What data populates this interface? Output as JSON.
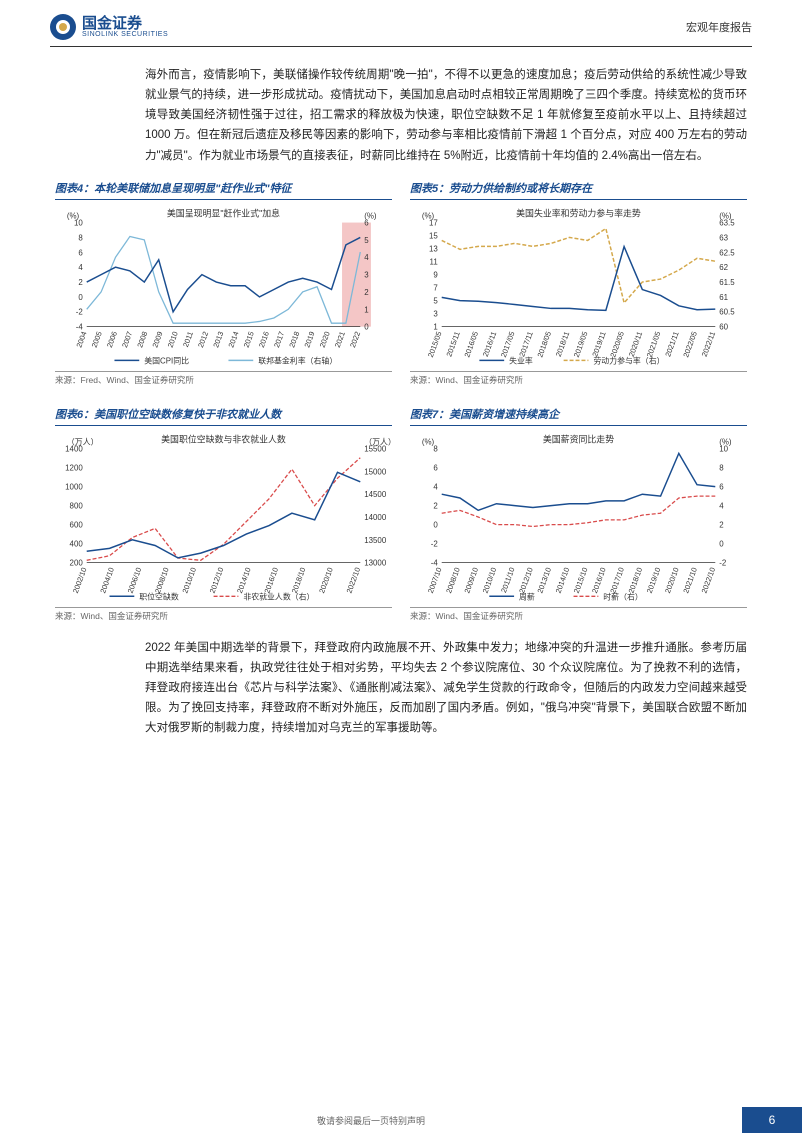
{
  "header": {
    "logo_cn": "国金证券",
    "logo_en": "SINOLINK SECURITIES",
    "doc_type": "宏观年度报告"
  },
  "para1": "海外而言，疫情影响下，美联储操作较传统周期\"晚一拍\"，不得不以更急的速度加息；疫后劳动供给的系统性减少导致就业景气的持续，进一步形成扰动。疫情扰动下，美国加息启动时点相较正常周期晚了三四个季度。持续宽松的货币环境导致美国经济韧性强于过往，招工需求的释放极为快速，职位空缺数不足 1 年就修复至疫前水平以上、且持续超过 1000 万。但在新冠后遗症及移民等因素的影响下，劳动参与率相比疫情前下滑超 1 个百分点，对应 400 万左右的劳动力\"减员\"。作为就业市场景气的直接表征，时薪同比维持在 5%附近，比疫情前十年均值的 2.4%高出一倍左右。",
  "chart4": {
    "title": "图表4：本轮美联储加息呈现明显\"赶作业式\"特征",
    "subtitle": "美国呈现明显\"赶作业式\"加息",
    "source": "来源：Fred、Wind、国金证券研究所",
    "type": "line",
    "x_labels": [
      "2004",
      "2005",
      "2006",
      "2007",
      "2008",
      "2009",
      "2010",
      "2011",
      "2012",
      "2013",
      "2014",
      "2015",
      "2016",
      "2017",
      "2018",
      "2019",
      "2020",
      "2021",
      "2022"
    ],
    "left_ylim": [
      -4,
      10
    ],
    "left_yticks": [
      -4,
      -2,
      0,
      2,
      4,
      6,
      8,
      10
    ],
    "left_unit": "(%)",
    "right_ylim": [
      0,
      6
    ],
    "right_yticks": [
      0,
      1,
      2,
      3,
      4,
      5,
      6
    ],
    "right_unit": "(%)",
    "cpi_color": "#1a4d8f",
    "rate_color": "#7db8d8",
    "band_color": "#f4c6c6",
    "cpi": [
      2,
      3,
      4,
      3.5,
      2,
      5,
      -2,
      1,
      3,
      2,
      1.5,
      1.5,
      0,
      1,
      2,
      2.5,
      2,
      1,
      7,
      8
    ],
    "rate": [
      1,
      2,
      4,
      5.2,
      5,
      2,
      0.2,
      0.2,
      0.2,
      0.2,
      0.2,
      0.2,
      0.3,
      0.5,
      1,
      2,
      2.3,
      0.2,
      0.2,
      4.3
    ],
    "legend": {
      "l1": "美国CPI同比",
      "l2": "联邦基金利率（右轴）"
    }
  },
  "chart5": {
    "title": "图表5：劳动力供给制约或将长期存在",
    "subtitle": "美国失业率和劳动力参与率走势",
    "source": "来源：Wind、国金证券研究所",
    "type": "line",
    "x_labels": [
      "2015/05",
      "2015/11",
      "2016/05",
      "2016/11",
      "2017/05",
      "2017/11",
      "2018/05",
      "2018/11",
      "2019/05",
      "2019/11",
      "2020/05",
      "2020/11",
      "2021/05",
      "2021/11",
      "2022/05",
      "2022/11"
    ],
    "left_ylim": [
      1,
      17
    ],
    "left_yticks": [
      1,
      3,
      5,
      7,
      9,
      11,
      13,
      15,
      17
    ],
    "left_unit": "(%)",
    "right_ylim": [
      60.0,
      63.5
    ],
    "right_yticks": [
      60.0,
      60.5,
      61.0,
      61.5,
      62.0,
      62.5,
      63.0,
      63.5
    ],
    "right_unit": "(%)",
    "unemp_color": "#1a4d8f",
    "lfpr_color": "#d4a84b",
    "unemp": [
      5.5,
      5.0,
      4.9,
      4.7,
      4.4,
      4.1,
      3.8,
      3.8,
      3.6,
      3.5,
      13.3,
      6.7,
      5.8,
      4.2,
      3.6,
      3.7
    ],
    "lfpr": [
      62.9,
      62.6,
      62.7,
      62.7,
      62.8,
      62.7,
      62.8,
      63.0,
      62.9,
      63.3,
      60.8,
      61.5,
      61.6,
      61.9,
      62.3,
      62.2
    ],
    "legend": {
      "l1": "失业率",
      "l2": "劳动力参与率（右）"
    }
  },
  "chart6": {
    "title": "图表6：美国职位空缺数修复快于非农就业人数",
    "subtitle": "美国职位空缺数与非农就业人数",
    "source": "来源：Wind、国金证券研究所",
    "type": "line",
    "x_labels": [
      "2002/10",
      "2004/10",
      "2006/10",
      "2008/10",
      "2010/10",
      "2012/10",
      "2014/10",
      "2016/10",
      "2018/10",
      "2020/10",
      "2022/10"
    ],
    "left_ylim": [
      200,
      1400
    ],
    "left_yticks": [
      200,
      400,
      600,
      800,
      1000,
      1200,
      1400
    ],
    "left_unit": "（万人）",
    "right_ylim": [
      13000,
      15500
    ],
    "right_yticks": [
      13000,
      13500,
      14000,
      14500,
      15000,
      15500
    ],
    "right_unit": "（万人）",
    "jolts_color": "#1a4d8f",
    "nfp_color": "#d94b4b",
    "jolts": [
      320,
      350,
      440,
      380,
      250,
      300,
      380,
      500,
      590,
      720,
      650,
      1150,
      1050
    ],
    "nfp": [
      13050,
      13150,
      13550,
      13750,
      13100,
      13050,
      13400,
      13900,
      14400,
      15050,
      14250,
      14850,
      15300
    ],
    "legend": {
      "l1": "职位空缺数",
      "l2": "非农就业人数（右）"
    }
  },
  "chart7": {
    "title": "图表7：美国薪资增速持续高企",
    "subtitle": "美国薪资同比走势",
    "source": "来源：Wind、国金证券研究所",
    "type": "line",
    "x_labels": [
      "2007/10",
      "2008/10",
      "2009/10",
      "2010/10",
      "2011/10",
      "2012/10",
      "2013/10",
      "2014/10",
      "2015/10",
      "2016/10",
      "2017/10",
      "2018/10",
      "2019/10",
      "2020/10",
      "2021/10",
      "2022/10"
    ],
    "left_ylim": [
      -4,
      8
    ],
    "left_yticks": [
      -4,
      -2,
      0,
      2,
      4,
      6,
      8
    ],
    "left_unit": "(%)",
    "right_ylim": [
      -2,
      10
    ],
    "right_yticks": [
      -2,
      0,
      2,
      4,
      6,
      8,
      10
    ],
    "right_unit": "(%)",
    "weekly_color": "#1a4d8f",
    "hourly_color": "#d94b4b",
    "weekly": [
      3.2,
      2.8,
      1.5,
      2.2,
      2.0,
      1.8,
      2.0,
      2.2,
      2.2,
      2.5,
      2.5,
      3.2,
      3.0,
      7.5,
      4.2,
      4.0
    ],
    "hourly": [
      3.2,
      3.5,
      2.8,
      2.0,
      2.0,
      1.8,
      2.0,
      2.0,
      2.2,
      2.5,
      2.5,
      3.0,
      3.2,
      4.8,
      5.0,
      5.0
    ],
    "legend": {
      "l1": "周薪",
      "l2": "时薪（右）"
    }
  },
  "para2": "2022 年美国中期选举的背景下，拜登政府内政施展不开、外政集中发力；地缘冲突的升温进一步推升通胀。参考历届中期选举结果来看，执政党往往处于相对劣势，平均失去 2 个参议院席位、30 个众议院席位。为了挽救不利的选情，拜登政府接连出台《芯片与科学法案》、《通胀削减法案》、减免学生贷款的行政命令，但随后的内政发力空间越来越受限。为了挽回支持率，拜登政府不断对外施压，反而加剧了国内矛盾。例如，\"俄乌冲突\"背景下，美国联合欧盟不断加大对俄罗斯的制裁力度，持续增加对乌克兰的军事援助等。",
  "footer": {
    "text": "敬请参阅最后一页特别声明",
    "page": "6"
  }
}
